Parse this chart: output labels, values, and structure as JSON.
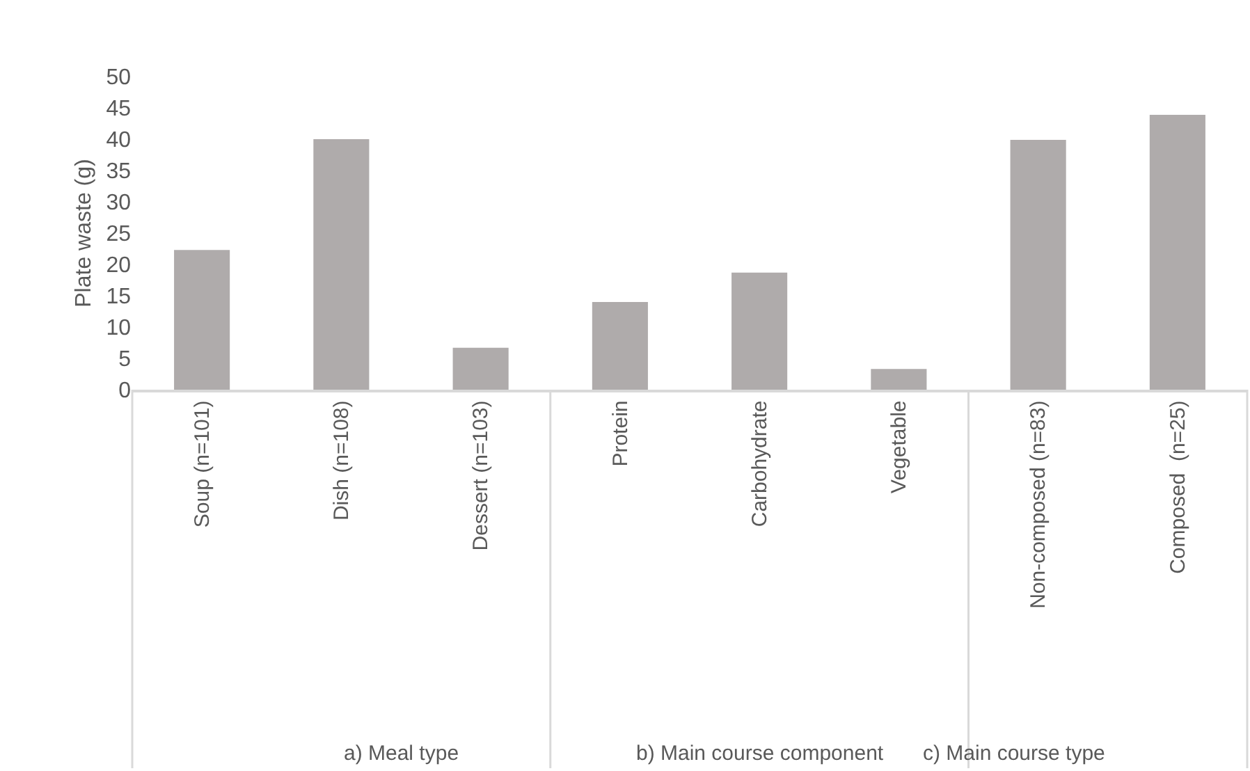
{
  "chart_data": [
    {
      "type": "bar",
      "categories": [
        "Soup (n=101)",
        "Dish (n=108)",
        "Dessert (n=103)"
      ],
      "values": [
        22.3,
        40,
        6.7
      ],
      "color": "#afabab",
      "xlabel": "a) Meal type",
      "ylabel": "Plate waste (g)",
      "ylim": [
        0,
        50
      ],
      "yticks": [
        0,
        5,
        10,
        15,
        20,
        25,
        30,
        35,
        40,
        45,
        50
      ],
      "grid": false
    },
    {
      "type": "bar",
      "categories": [
        "Protein",
        "Carbohydrate",
        "Vegetable"
      ],
      "values": [
        14.0,
        18.7,
        3.3
      ],
      "color": "#afabab",
      "xlabel": "b) Main course component",
      "ylim": [
        0,
        50
      ],
      "tick_labels": "x",
      "grid": false
    },
    {
      "type": "bar",
      "categories": [
        "Non-composed (n=83)",
        "Composed  (n=25)"
      ],
      "values": [
        39.9,
        43.9
      ],
      "color": "#afabab",
      "xlabel": "c) Main course type",
      "ylim": [
        0,
        50
      ],
      "tick_labels": "x",
      "grid": false
    }
  ]
}
